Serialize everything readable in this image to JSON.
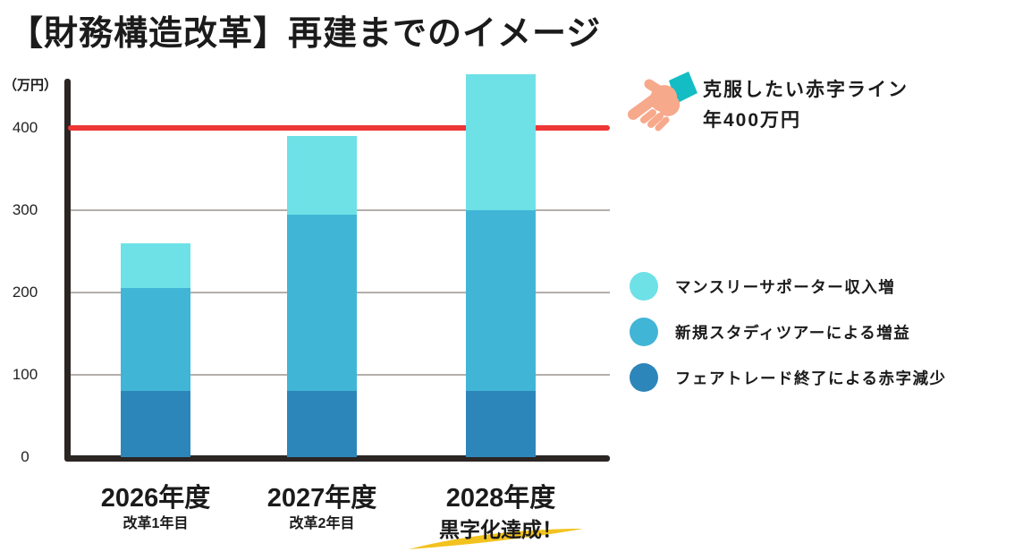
{
  "title": "【財務構造改革】再建までのイメージ",
  "annotation": {
    "line1": "克服したい赤字ライン",
    "line2": "年400万円"
  },
  "colors": {
    "axis": "#2b2523",
    "grid": "#b4afab",
    "reference_line": "#ee3636",
    "highlight_underline": "#f2c21e",
    "hand_skin": "#f7a98b",
    "hand_sleeve": "#14bdc4",
    "text": "#1b1b1b"
  },
  "chart_data": {
    "type": "bar",
    "stacked": true,
    "title": "【財務構造改革】再建までのイメージ",
    "unit_label": "（万円）",
    "ylabel": "（万円）",
    "yticks": [
      0,
      100,
      200,
      300,
      400
    ],
    "ylim": [
      0,
      470
    ],
    "grid": true,
    "legend_position": "right",
    "categories": [
      {
        "label": "2026年度",
        "sublabel": "改革1年目",
        "highlight": false
      },
      {
        "label": "2027年度",
        "sublabel": "改革2年目",
        "highlight": false
      },
      {
        "label": "2028年度",
        "sublabel": "黒字化達成！",
        "highlight": true
      }
    ],
    "series": [
      {
        "name": "マンスリーサポーター収入増",
        "color": "#6ee1e7",
        "values": [
          55,
          95,
          165
        ]
      },
      {
        "name": "新規スタディツアーによる増益",
        "color": "#41b5d6",
        "values": [
          125,
          215,
          220
        ]
      },
      {
        "name": "フェアトレード終了による赤字減少",
        "color": "#2d86ba",
        "values": [
          80,
          80,
          80
        ]
      }
    ],
    "totals": [
      260,
      390,
      465
    ],
    "reference_line": {
      "value": 400,
      "color": "#ee3636"
    }
  }
}
